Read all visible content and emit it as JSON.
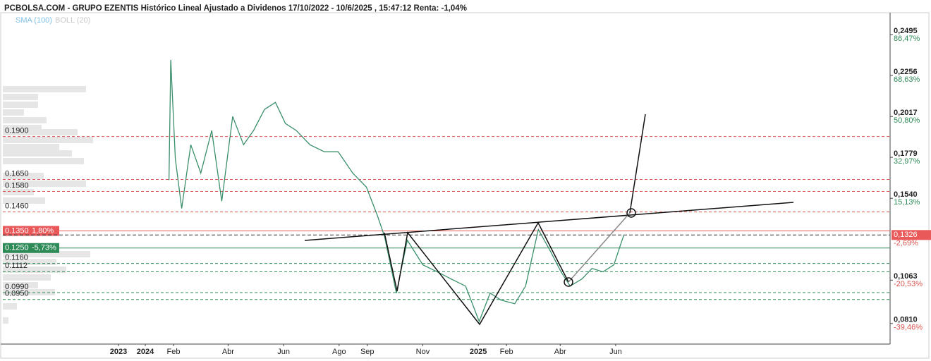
{
  "chart_data": {
    "type": "line",
    "title": "PCBOLSA.COM - GRUPO EZENTIS Histórico Lineal Ajustado a Dividenos 17/10/2022 - 10/6/2025 , 15:47:12 Renta: -1,04%",
    "indicators": [
      "SMA (100)",
      "BOLL (20)"
    ],
    "color": "#3a8f6a",
    "x": [
      "2024-01-27",
      "2024-01-29",
      "2024-02-03",
      "2024-02-10",
      "2024-02-20",
      "2024-03-02",
      "2024-03-14",
      "2024-03-25",
      "2024-04-06",
      "2024-04-18",
      "2024-04-29",
      "2024-05-11",
      "2024-05-23",
      "2024-06-03",
      "2024-06-15",
      "2024-06-30",
      "2024-07-16",
      "2024-07-31",
      "2024-08-16",
      "2024-08-31",
      "2024-09-12",
      "2024-09-20",
      "2024-10-03",
      "2024-10-15",
      "2024-11-01",
      "2024-11-17",
      "2024-12-02",
      "2024-12-18",
      "2025-01-02",
      "2025-01-14",
      "2025-01-26",
      "2025-02-10",
      "2025-02-22",
      "2025-03-08",
      "2025-03-21",
      "2025-04-02",
      "2025-04-12",
      "2025-04-25",
      "2025-05-06",
      "2025-05-18",
      "2025-05-30",
      "2025-06-08",
      "2025-06-10"
    ],
    "values": [
      0.1646,
      0.2347,
      0.177,
      0.1481,
      0.1852,
      0.1687,
      0.1935,
      0.1523,
      0.2017,
      0.1852,
      0.1935,
      0.2058,
      0.2099,
      0.1976,
      0.1935,
      0.1852,
      0.1811,
      0.1811,
      0.1687,
      0.1605,
      0.144,
      0.1316,
      0.0987,
      0.1296,
      0.1152,
      0.1111,
      0.107,
      0.1028,
      0.0822,
      0.0987,
      0.0946,
      0.0925,
      0.1028,
      0.1358,
      0.1234,
      0.1111,
      0.1028,
      0.107,
      0.1131,
      0.1111,
      0.1152,
      0.1296,
      0.1326
    ],
    "ylim": [
      0.069,
      0.2622
    ],
    "yticks": [
      {
        "value": 0.2495,
        "label": "0,2495"
      },
      {
        "value": 0.2256,
        "label": "0,2256"
      },
      {
        "value": 0.2017,
        "label": "0,2017"
      },
      {
        "value": 0.1779,
        "label": "0,1779"
      },
      {
        "value": 0.154,
        "label": "0,1540"
      },
      {
        "value": 0.1063,
        "label": "0,1063"
      },
      {
        "value": 0.081,
        "label": "0,0810"
      }
    ],
    "ytick_changes": [
      {
        "value": 86.47,
        "label": "86,47%"
      },
      {
        "value": 68.63,
        "label": "68,63%"
      },
      {
        "value": 50.8,
        "label": "50,80%"
      },
      {
        "value": 32.97,
        "label": "32,97%"
      },
      {
        "value": 15.13,
        "label": "15,13%"
      },
      {
        "value": -20.53,
        "label": "-20,53%"
      },
      {
        "value": -39.46,
        "label": "-39,46%"
      }
    ],
    "xticks": [
      {
        "value": "2023-01-01",
        "label": "2023"
      },
      {
        "value": "2024-01-01",
        "label": "2024"
      },
      {
        "value": "2024-02-01",
        "label": "Feb"
      },
      {
        "value": "2024-04-01",
        "label": "Abr"
      },
      {
        "value": "2024-06-01",
        "label": "Jun"
      },
      {
        "value": "2024-08-01",
        "label": "Ago"
      },
      {
        "value": "2024-09-01",
        "label": "Sep"
      },
      {
        "value": "2024-11-01",
        "label": "Nov"
      },
      {
        "value": "2025-01-01",
        "label": "2025"
      },
      {
        "value": "2025-02-01",
        "label": "Feb"
      },
      {
        "value": "2025-04-01",
        "label": "Abr"
      },
      {
        "value": "2025-06-01",
        "label": "Jun"
      }
    ],
    "levels": [
      {
        "value": 0.19,
        "label": "0.1900",
        "color": "#d9534f"
      },
      {
        "value": 0.165,
        "label": "0.1650",
        "color": "#d9534f"
      },
      {
        "value": 0.158,
        "label": "0.1580",
        "color": "#d9534f"
      },
      {
        "value": 0.146,
        "label": "0.1460",
        "color": "#d9534f"
      },
      {
        "value": 0.135,
        "label": "0.1350",
        "color": "#e9595a",
        "change": {
          "value": 1.8,
          "label": "1,80%"
        }
      },
      {
        "value": 0.125,
        "label": "0.1250",
        "color": "#2e8b57",
        "change": {
          "value": -5.73,
          "label": "-5,73%"
        }
      },
      {
        "value": 0.116,
        "label": "0.1160",
        "color": "#2e8b57"
      },
      {
        "value": 0.1112,
        "label": "0.1112",
        "color": "#2e8b57"
      },
      {
        "value": 0.099,
        "label": "0.0990",
        "color": "#2e8b57"
      },
      {
        "value": 0.095,
        "label": "0.0950",
        "color": "#2e8b57"
      }
    ],
    "last": {
      "value": 0.1326,
      "label": "0,1326",
      "color": "#e9595a",
      "change": {
        "value": -2.69,
        "label": "-2,69%"
      }
    }
  }
}
